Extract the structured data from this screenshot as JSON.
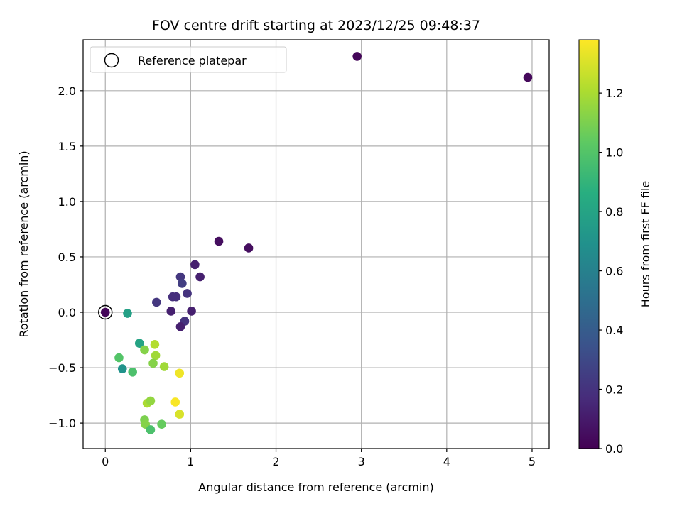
{
  "chart_data": {
    "type": "scatter",
    "title": "FOV centre drift starting at 2023/12/25 09:48:37",
    "xlabel": "Angular distance from reference (arcmin)",
    "ylabel": "Rotation from reference (arcmin)",
    "xlim": [
      -0.26,
      5.2
    ],
    "ylim": [
      -1.23,
      2.46
    ],
    "xticks": [
      0,
      1,
      2,
      3,
      4,
      5
    ],
    "yticks": [
      -1.0,
      -0.5,
      0.0,
      0.5,
      1.0,
      1.5,
      2.0
    ],
    "xtick_labels": [
      "0",
      "1",
      "2",
      "3",
      "4",
      "5"
    ],
    "ytick_labels": [
      "−1.0",
      "−0.5",
      "0.0",
      "0.5",
      "1.0",
      "1.5",
      "2.0"
    ],
    "grid": true,
    "legend": {
      "position": "top-left",
      "entries": [
        "Reference platepar"
      ]
    },
    "reference_point": {
      "x": 0.0,
      "y": 0.0
    },
    "colorbar": {
      "label": "Hours from first FF file",
      "range": [
        0.0,
        1.38
      ],
      "ticks": [
        0.0,
        0.2,
        0.4,
        0.6,
        0.8,
        1.0,
        1.2
      ],
      "tick_labels": [
        "0.0",
        "0.2",
        "0.4",
        "0.6",
        "0.8",
        "1.0",
        "1.2"
      ],
      "colormap": "viridis"
    },
    "points": [
      {
        "x": 0.0,
        "y": 0.0,
        "c": 0.02
      },
      {
        "x": 2.95,
        "y": 2.31,
        "c": 0.02
      },
      {
        "x": 4.95,
        "y": 2.12,
        "c": 0.03
      },
      {
        "x": 1.33,
        "y": 0.64,
        "c": 0.05
      },
      {
        "x": 1.68,
        "y": 0.58,
        "c": 0.05
      },
      {
        "x": 1.05,
        "y": 0.43,
        "c": 0.12
      },
      {
        "x": 1.11,
        "y": 0.32,
        "c": 0.12
      },
      {
        "x": 0.88,
        "y": 0.32,
        "c": 0.22
      },
      {
        "x": 0.9,
        "y": 0.26,
        "c": 0.25
      },
      {
        "x": 0.96,
        "y": 0.17,
        "c": 0.2
      },
      {
        "x": 0.6,
        "y": 0.09,
        "c": 0.22
      },
      {
        "x": 0.79,
        "y": 0.14,
        "c": 0.18
      },
      {
        "x": 0.83,
        "y": 0.14,
        "c": 0.18
      },
      {
        "x": 0.77,
        "y": 0.01,
        "c": 0.12
      },
      {
        "x": 1.01,
        "y": 0.01,
        "c": 0.12
      },
      {
        "x": 0.93,
        "y": -0.08,
        "c": 0.2
      },
      {
        "x": 0.88,
        "y": -0.13,
        "c": 0.12
      },
      {
        "x": 0.26,
        "y": -0.01,
        "c": 0.78
      },
      {
        "x": 0.4,
        "y": -0.28,
        "c": 0.8
      },
      {
        "x": 0.2,
        "y": -0.51,
        "c": 0.7
      },
      {
        "x": 0.16,
        "y": -0.41,
        "c": 1.0
      },
      {
        "x": 0.32,
        "y": -0.54,
        "c": 0.98
      },
      {
        "x": 0.46,
        "y": -0.34,
        "c": 1.12
      },
      {
        "x": 0.58,
        "y": -0.29,
        "c": 1.22
      },
      {
        "x": 0.59,
        "y": -0.39,
        "c": 1.18
      },
      {
        "x": 0.56,
        "y": -0.46,
        "c": 1.12
      },
      {
        "x": 0.69,
        "y": -0.49,
        "c": 1.18
      },
      {
        "x": 0.87,
        "y": -0.55,
        "c": 1.35
      },
      {
        "x": 0.49,
        "y": -0.82,
        "c": 1.2
      },
      {
        "x": 0.53,
        "y": -0.8,
        "c": 1.15
      },
      {
        "x": 0.82,
        "y": -0.81,
        "c": 1.37
      },
      {
        "x": 0.87,
        "y": -0.92,
        "c": 1.3
      },
      {
        "x": 0.46,
        "y": -0.97,
        "c": 1.1
      },
      {
        "x": 0.47,
        "y": -1.01,
        "c": 1.12
      },
      {
        "x": 0.66,
        "y": -1.01,
        "c": 1.05
      },
      {
        "x": 0.53,
        "y": -1.06,
        "c": 0.98
      }
    ]
  }
}
